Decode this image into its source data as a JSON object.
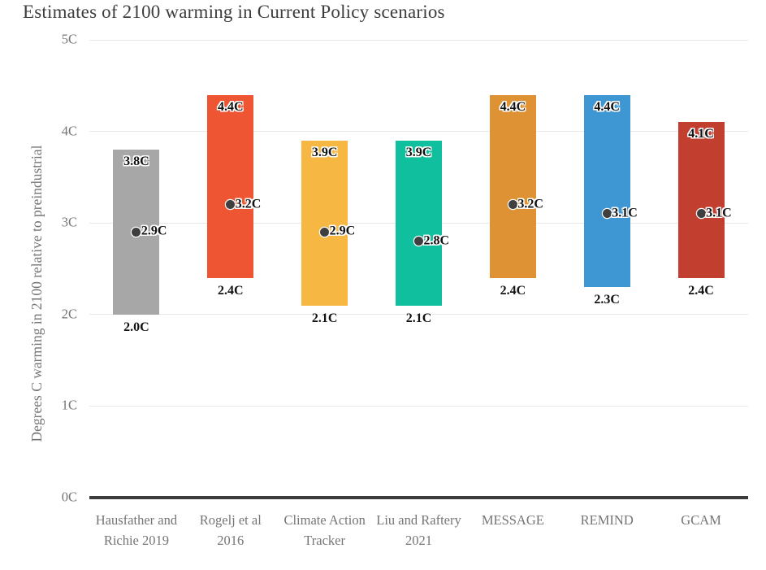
{
  "title": "Estimates of 2100 warming in Current Policy scenarios",
  "chart_data": {
    "type": "bar",
    "subtype": "floating-range-bars-with-midpoint-dots",
    "title": "Estimates of 2100 warming in Current Policy scenarios",
    "xlabel": "",
    "ylabel": "Degrees C warming in 2100 relative to preindustrial",
    "ylim": [
      0,
      5
    ],
    "yticks": [
      0,
      1,
      2,
      3,
      4,
      5
    ],
    "ytick_labels": [
      "0C",
      "1C",
      "2C",
      "3C",
      "4C",
      "5C"
    ],
    "grid": "horizontal",
    "legend": "none",
    "categories": [
      "Hausfather and Richie 2019",
      "Rogelj et al 2016",
      "Climate Action Tracker",
      "Liu and Raftery 2021",
      "MESSAGE",
      "REMIND",
      "GCAM"
    ],
    "series": [
      {
        "name": "Hausfather and Richie 2019",
        "min": 2.0,
        "max": 3.8,
        "mid": 2.9,
        "min_label": "2.0C",
        "max_label": "3.8C",
        "mid_label": "2.9C",
        "color": "#a7a7a7"
      },
      {
        "name": "Rogelj et al 2016",
        "min": 2.4,
        "max": 4.4,
        "mid": 3.2,
        "min_label": "2.4C",
        "max_label": "4.4C",
        "mid_label": "3.2C",
        "color": "#ee5533"
      },
      {
        "name": "Climate Action Tracker",
        "min": 2.1,
        "max": 3.9,
        "mid": 2.9,
        "min_label": "2.1C",
        "max_label": "3.9C",
        "mid_label": "2.9C",
        "color": "#f7b843"
      },
      {
        "name": "Liu and Raftery 2021",
        "min": 2.1,
        "max": 3.9,
        "mid": 2.8,
        "min_label": "2.1C",
        "max_label": "3.9C",
        "mid_label": "2.8C",
        "color": "#0fbf9e"
      },
      {
        "name": "MESSAGE",
        "min": 2.4,
        "max": 4.4,
        "mid": 3.2,
        "min_label": "2.4C",
        "max_label": "4.4C",
        "mid_label": "3.2C",
        "color": "#de9233"
      },
      {
        "name": "REMIND",
        "min": 2.3,
        "max": 4.4,
        "mid": 3.1,
        "min_label": "2.3C",
        "max_label": "4.4C",
        "mid_label": "3.1C",
        "color": "#3e97d3"
      },
      {
        "name": "GCAM",
        "min": 2.4,
        "max": 4.1,
        "mid": 3.1,
        "min_label": "2.4C",
        "max_label": "4.1C",
        "mid_label": "3.1C",
        "color": "#c23e2e"
      }
    ],
    "colors": {
      "axis_line": "#3d3d3d",
      "gridline": "#e8e8e8",
      "axis_text": "#757575",
      "title_text": "#3d3d3d",
      "dot": "#3f3f3f",
      "value_label_text": "#121212"
    }
  }
}
